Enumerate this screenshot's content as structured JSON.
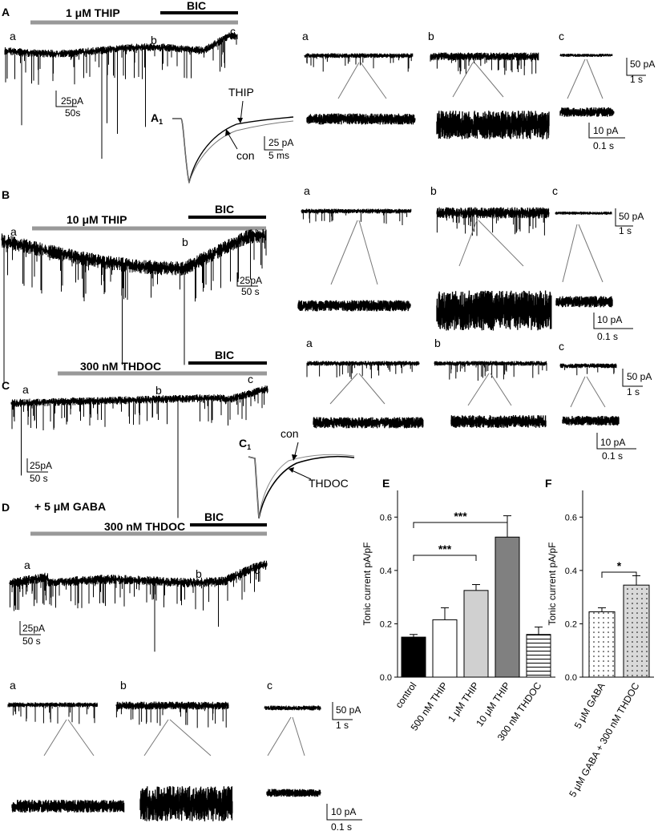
{
  "panels": {
    "A": {
      "letter": "A",
      "drug": "1 μM THIP",
      "blocker": "BIC",
      "trace_labels": [
        "a",
        "b",
        "c"
      ],
      "scale_main": [
        "25pA",
        "50s"
      ],
      "inset_letter": "A",
      "inset_sub": "1",
      "inset_labels": [
        "THIP",
        "con"
      ],
      "inset_scale": [
        "25 pA",
        "5 ms"
      ],
      "exp_scale_top": [
        "50 pA",
        "1 s"
      ],
      "exp_scale_bottom": [
        "10 pA",
        "0.1 s"
      ]
    },
    "B": {
      "letter": "B",
      "drug": "10 μM THIP",
      "blocker": "BIC",
      "trace_labels": [
        "a",
        "b",
        "c"
      ],
      "scale_main": [
        "25pA",
        "50 s"
      ],
      "exp_scale_top": [
        "50 pA",
        "1 s"
      ],
      "exp_scale_bottom": [
        "10 pA",
        "0.1 s"
      ]
    },
    "C": {
      "letter": "C",
      "drug": "300 nM THDOC",
      "blocker": "BIC",
      "trace_labels": [
        "a",
        "b",
        "c"
      ],
      "scale_main": [
        "25pA",
        "50 s"
      ],
      "inset_letter": "C",
      "inset_sub": "1",
      "inset_labels": [
        "con",
        "THDOC"
      ],
      "exp_scale_top": [
        "50 pA",
        "1 s"
      ],
      "exp_scale_bottom": [
        "10 pA",
        "0.1 s"
      ]
    },
    "D": {
      "letter": "D",
      "gaba": "+ 5 μM GABA",
      "drug": "300 nM THDOC",
      "blocker": "BIC",
      "trace_labels": [
        "a",
        "b",
        "c"
      ],
      "scale_main": [
        "25pA",
        "50 s"
      ],
      "exp_scale_top": [
        "50 pA",
        "1 s"
      ],
      "exp_scale_bottom": [
        "10 pA",
        "0.1 s"
      ]
    }
  },
  "chart_data": [
    {
      "panel": "E",
      "type": "bar",
      "ylabel": "Tonic current pA/pF",
      "ylim": [
        0,
        0.7
      ],
      "yticks": [
        "0.0",
        "0.2",
        "0.4",
        "0.6"
      ],
      "categories": [
        "control",
        "500 nM THIP",
        "1 μM THIP",
        "10 μM THIP",
        "300 nM THDOC"
      ],
      "values": [
        0.15,
        0.215,
        0.325,
        0.525,
        0.16
      ],
      "errors": [
        0.01,
        0.045,
        0.022,
        0.08,
        0.028
      ],
      "fills": [
        "#000000",
        "#ffffff",
        "#d0d0d0",
        "#808080",
        "stripes"
      ],
      "significance": [
        {
          "from": 0,
          "to": 2,
          "label": "***"
        },
        {
          "from": 0,
          "to": 3,
          "label": "***"
        }
      ]
    },
    {
      "panel": "F",
      "type": "bar",
      "ylabel": "Tonic current pA/pF",
      "ylim": [
        0,
        0.7
      ],
      "yticks": [
        "0.0",
        "0.2",
        "0.4",
        "0.6"
      ],
      "categories": [
        "5 μM GABA",
        "5 μM GABA + 300 nM THDOC"
      ],
      "values": [
        0.245,
        0.345
      ],
      "errors": [
        0.015,
        0.035
      ],
      "fills": [
        "dots",
        "dots-gray"
      ],
      "significance": [
        {
          "from": 0,
          "to": 1,
          "label": "*"
        }
      ]
    }
  ]
}
